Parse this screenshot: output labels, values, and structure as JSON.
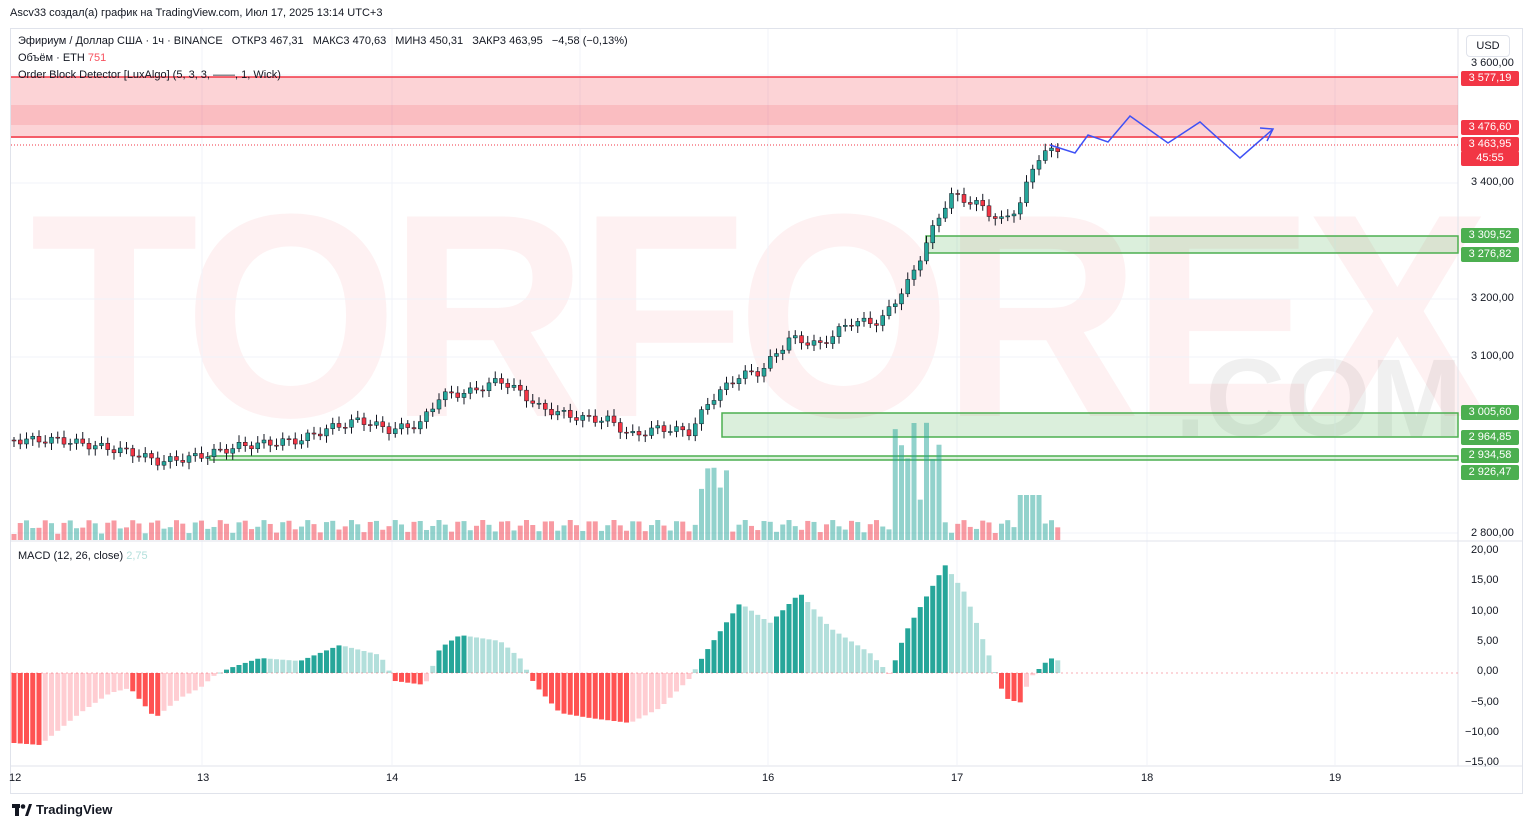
{
  "header": {
    "credit": "Ascv33 создал(а) график на TradingView.com, Июл 17, 2025 13:14 UTC+3"
  },
  "legend": {
    "symbol": "Эфириум / Доллар США · 1ч · BINANCE",
    "open": "ОТКР3 467,31",
    "high": "МАКС3 470,63",
    "low": "МИН3 450,31",
    "close": "ЗАКР3 463,95",
    "change": "−4,58 (−0,13%)",
    "volume_label": "Объём · ETH",
    "volume_value": "751",
    "indicator": "Order Block Detector [LuxAlgo] (5, 3, 3, ——, 1, Wick)",
    "macd_label": "MACD (12, 26, close)",
    "macd_value": "2,75"
  },
  "currency_button": "USD",
  "price_axis": [
    "3 600,00",
    "3 400,00",
    "3 200,00",
    "3 100,00",
    "2 800,00"
  ],
  "price_tags": [
    {
      "text": "3 577,19",
      "color": "#f23645"
    },
    {
      "text": "3 476,60",
      "color": "#f23645"
    },
    {
      "text": "3 463,95",
      "color": "#f23645"
    },
    {
      "text": "45:55",
      "color": "#f23645"
    },
    {
      "text": "3 309,52",
      "color": "#4caf50"
    },
    {
      "text": "3 276,82",
      "color": "#4caf50"
    },
    {
      "text": "3 005,60",
      "color": "#4caf50"
    },
    {
      "text": "2 964,85",
      "color": "#4caf50"
    },
    {
      "text": "2 934,58",
      "color": "#4caf50"
    },
    {
      "text": "2 926,47",
      "color": "#4caf50"
    }
  ],
  "macd_axis": [
    "20,00",
    "15,00",
    "10,00",
    "5,00",
    "0,00",
    "−5,00",
    "−10,00",
    "−15,00"
  ],
  "time_axis": [
    "12",
    "13",
    "14",
    "15",
    "16",
    "17",
    "18",
    "19"
  ],
  "watermark": {
    "main": "TORFOREX",
    "sub": ".COM"
  },
  "footer": {
    "brand": "TradingView"
  },
  "colors": {
    "up": "#26a69a",
    "down": "#f23645",
    "bear_block": "#f23645",
    "bull_block": "#4caf50",
    "projection": "#3f51f5"
  }
}
